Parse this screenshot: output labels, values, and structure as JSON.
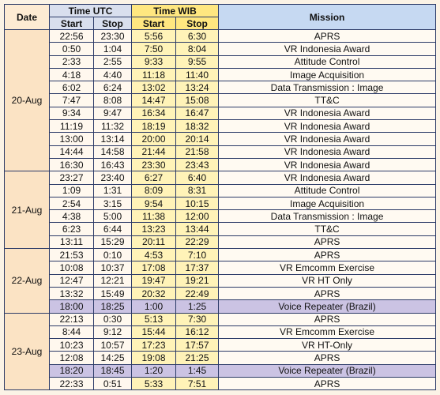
{
  "header": {
    "date": "Date",
    "time_utc": "Time UTC",
    "time_wib": "Time WIB",
    "mission": "Mission",
    "utc_start": "Start",
    "utc_stop": "Stop",
    "wib_start": "Start",
    "wib_stop": "Stop"
  },
  "groups": [
    {
      "date": "20-Aug",
      "rows": [
        {
          "utc_start": "22:56",
          "utc_stop": "23:30",
          "wib_start": "5:56",
          "wib_stop": "6:30",
          "mission": "APRS"
        },
        {
          "utc_start": "0:50",
          "utc_stop": "1:04",
          "wib_start": "7:50",
          "wib_stop": "8:04",
          "mission": "VR Indonesia Award"
        },
        {
          "utc_start": "2:33",
          "utc_stop": "2:55",
          "wib_start": "9:33",
          "wib_stop": "9:55",
          "mission": "Attitude Control"
        },
        {
          "utc_start": "4:18",
          "utc_stop": "4:40",
          "wib_start": "11:18",
          "wib_stop": "11:40",
          "mission": "Image Acquisition"
        },
        {
          "utc_start": "6:02",
          "utc_stop": "6:24",
          "wib_start": "13:02",
          "wib_stop": "13:24",
          "mission": "Data Transmission : Image"
        },
        {
          "utc_start": "7:47",
          "utc_stop": "8:08",
          "wib_start": "14:47",
          "wib_stop": "15:08",
          "mission": "TT&C"
        },
        {
          "utc_start": "9:34",
          "utc_stop": "9:47",
          "wib_start": "16:34",
          "wib_stop": "16:47",
          "mission": "VR Indonesia Award"
        },
        {
          "utc_start": "11:19",
          "utc_stop": "11:32",
          "wib_start": "18:19",
          "wib_stop": "18:32",
          "mission": "VR Indonesia Award"
        },
        {
          "utc_start": "13:00",
          "utc_stop": "13:14",
          "wib_start": "20:00",
          "wib_stop": "20:14",
          "mission": "VR Indonesia Award"
        },
        {
          "utc_start": "14:44",
          "utc_stop": "14:58",
          "wib_start": "21:44",
          "wib_stop": "21:58",
          "mission": "VR Indonesia Award"
        },
        {
          "utc_start": "16:30",
          "utc_stop": "16:43",
          "wib_start": "23:30",
          "wib_stop": "23:43",
          "mission": "VR Indonesia Award"
        }
      ]
    },
    {
      "date": "21-Aug",
      "rows": [
        {
          "utc_start": "23:27",
          "utc_stop": "23:40",
          "wib_start": "6:27",
          "wib_stop": "6:40",
          "mission": "VR Indonesia Award"
        },
        {
          "utc_start": "1:09",
          "utc_stop": "1:31",
          "wib_start": "8:09",
          "wib_stop": "8:31",
          "mission": "Attitude Control"
        },
        {
          "utc_start": "2:54",
          "utc_stop": "3:15",
          "wib_start": "9:54",
          "wib_stop": "10:15",
          "mission": "Image Acquisition"
        },
        {
          "utc_start": "4:38",
          "utc_stop": "5:00",
          "wib_start": "11:38",
          "wib_stop": "12:00",
          "mission": "Data Transmission : Image"
        },
        {
          "utc_start": "6:23",
          "utc_stop": "6:44",
          "wib_start": "13:23",
          "wib_stop": "13:44",
          "mission": "TT&C"
        },
        {
          "utc_start": "13:11",
          "utc_stop": "15:29",
          "wib_start": "20:11",
          "wib_stop": "22:29",
          "mission": "APRS"
        }
      ]
    },
    {
      "date": "22-Aug",
      "rows": [
        {
          "utc_start": "21:53",
          "utc_stop": "0:10",
          "wib_start": "4:53",
          "wib_stop": "7:10",
          "mission": "APRS"
        },
        {
          "utc_start": "10:08",
          "utc_stop": "10:37",
          "wib_start": "17:08",
          "wib_stop": "17:37",
          "mission": "VR Emcomm Exercise"
        },
        {
          "utc_start": "12:47",
          "utc_stop": "12:21",
          "wib_start": "19:47",
          "wib_stop": "19:21",
          "mission": "VR HT Only"
        },
        {
          "utc_start": "13:32",
          "utc_stop": "15:49",
          "wib_start": "20:32",
          "wib_stop": "22:49",
          "mission": "APRS"
        },
        {
          "utc_start": "18:00",
          "utc_stop": "18:25",
          "wib_start": "1:00",
          "wib_stop": "1:25",
          "mission": "Voice Repeater (Brazil)",
          "highlight": true
        }
      ]
    },
    {
      "date": "23-Aug",
      "rows": [
        {
          "utc_start": "22:13",
          "utc_stop": "0:30",
          "wib_start": "5:13",
          "wib_stop": "7:30",
          "mission": "APRS"
        },
        {
          "utc_start": "8:44",
          "utc_stop": "9:12",
          "wib_start": "15:44",
          "wib_stop": "16:12",
          "mission": "VR Emcomm Exercise"
        },
        {
          "utc_start": "10:23",
          "utc_stop": "10:57",
          "wib_start": "17:23",
          "wib_stop": "17:57",
          "mission": "VR HT-Only"
        },
        {
          "utc_start": "12:08",
          "utc_stop": "14:25",
          "wib_start": "19:08",
          "wib_stop": "21:25",
          "mission": "APRS"
        },
        {
          "utc_start": "18:20",
          "utc_stop": "18:45",
          "wib_start": "1:20",
          "wib_stop": "1:45",
          "mission": "Voice Repeater (Brazil)",
          "highlight": true
        },
        {
          "utc_start": "22:33",
          "utc_stop": "0:51",
          "wib_start": "5:33",
          "wib_stop": "7:51",
          "mission": "APRS"
        }
      ]
    }
  ]
}
